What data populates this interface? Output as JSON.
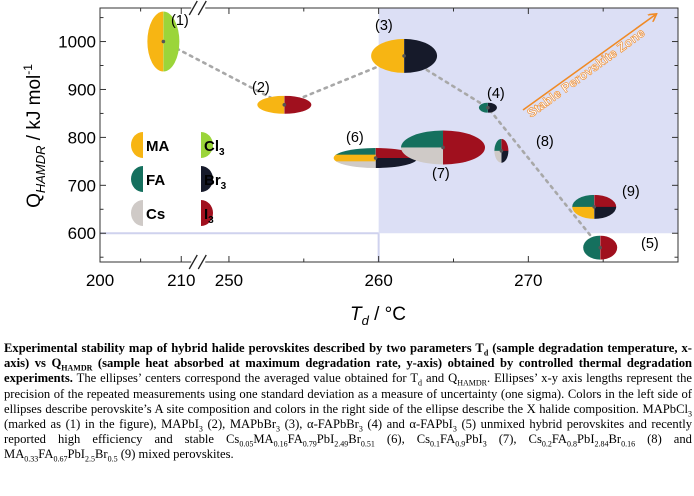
{
  "chart_data": {
    "type": "scatter",
    "xlabel": {
      "main": "T",
      "sub": "d",
      "unit": " / °C"
    },
    "ylabel": {
      "main": "Q",
      "sub": "HAMDR",
      "unit": " / kJ mol",
      "sup": "-1"
    },
    "x_ticks": [
      "200",
      "210",
      "250",
      "260",
      "270"
    ],
    "y_ticks": [
      "1000",
      "900",
      "800",
      "700",
      "600"
    ],
    "x_axis_break": [
      212,
      248
    ],
    "ylim": [
      540,
      1070
    ],
    "zone_label": "Stable Perovskite Zone",
    "zone": {
      "x_min": 260,
      "y_min": 600
    },
    "path_order": [
      1,
      2,
      3,
      4,
      5
    ],
    "points": [
      {
        "id": "(1)",
        "x": 207.8,
        "y": 1000,
        "left": [
          "#f7b513"
        ],
        "right": [
          "#9bd53a"
        ]
      },
      {
        "id": "(2)",
        "x": 253.7,
        "y": 868,
        "left": [
          "#f7b513"
        ],
        "right": [
          "#a0101e"
        ]
      },
      {
        "id": "(3)",
        "x": 261.7,
        "y": 970,
        "left": [
          "#f7b513"
        ],
        "right": [
          "#161a2a"
        ]
      },
      {
        "id": "(4)",
        "x": 267.3,
        "y": 862,
        "left": [
          "#15705e"
        ],
        "right": [
          "#161a2a"
        ]
      },
      {
        "id": "(5)",
        "x": 274.8,
        "y": 570,
        "left": [
          "#15705e"
        ],
        "right": [
          "#a0101e"
        ]
      },
      {
        "id": "(6)",
        "x": 259.8,
        "y": 757,
        "left": [
          "#15705e",
          "#f7b513",
          "#cfcac7"
        ],
        "right": [
          "#a0101e",
          "#161a2a"
        ]
      },
      {
        "id": "(7)",
        "x": 264.3,
        "y": 779,
        "left": [
          "#15705e",
          "#cfcac7"
        ],
        "right": [
          "#a0101e"
        ]
      },
      {
        "id": "(8)",
        "x": 268.2,
        "y": 772,
        "left": [
          "#15705e",
          "#cfcac7"
        ],
        "right": [
          "#a0101e",
          "#161a2a"
        ]
      },
      {
        "id": "(9)",
        "x": 274.4,
        "y": 655,
        "left": [
          "#15705e",
          "#f7b513"
        ],
        "right": [
          "#a0101e",
          "#161a2a"
        ]
      }
    ],
    "legend": [
      {
        "label": "MA",
        "sub": "",
        "color": "#f7b513",
        "side": "left"
      },
      {
        "label": "Cl",
        "sub": "3",
        "color": "#9bd53a",
        "side": "right"
      },
      {
        "label": "FA",
        "sub": "",
        "color": "#15705e",
        "side": "left"
      },
      {
        "label": "Br",
        "sub": "3",
        "color": "#161a2a",
        "side": "right"
      },
      {
        "label": "Cs",
        "sub": "",
        "color": "#cfcac7",
        "side": "left"
      },
      {
        "label": "I",
        "sub": "3",
        "color": "#a0101e",
        "side": "right"
      }
    ]
  },
  "caption": {
    "bold_segments": [
      "Experimental stability map of hybrid halide perovskites described by two parameters T",
      "d",
      " (sample degradation temperature, x-axis) vs Q",
      "HAMDR",
      " (sample heat absorbed at maximum degradation rate, y-axis) obtained by controlled thermal degradation experiments."
    ],
    "body_segments": [
      "  The ellipses’ centers correspond the averaged value obtained for T",
      "d",
      " and Q",
      "HAMDR",
      ". Ellipses’ x-y axis lengths represent the precision of the repeated measurements using one standard deviation as a measure of uncertainty (one sigma). Colors in the left side of ellipses describe perovskite’s A site composition and colors in the right side of the ellipse describe the X halide composition. MAPbCl",
      "3",
      " (marked as (1) in the figure), MAPbI",
      "3",
      " (2), MAPbBr",
      "3",
      " (3), α-FAPbBr",
      "3",
      " (4) and α-FAPbI",
      "3",
      " (5) unmixed hybrid perovskites and recently reported high efficiency and stable Cs",
      "0.05",
      "MA",
      "0.16",
      "FA",
      "0.79",
      "PbI",
      "2.49",
      "Br",
      "0.51",
      "  (6),  Cs",
      "0.1",
      "FA",
      "0.9",
      "PbI",
      "3",
      " (7), Cs",
      "0.2",
      "FA",
      "0.8",
      "PbI",
      "2.84",
      "Br",
      "0.16",
      " (8) and MA",
      "0.33",
      "FA",
      "0.67",
      "PbI",
      "2.5",
      "Br",
      "0.5",
      " (9) mixed perovskites."
    ]
  }
}
